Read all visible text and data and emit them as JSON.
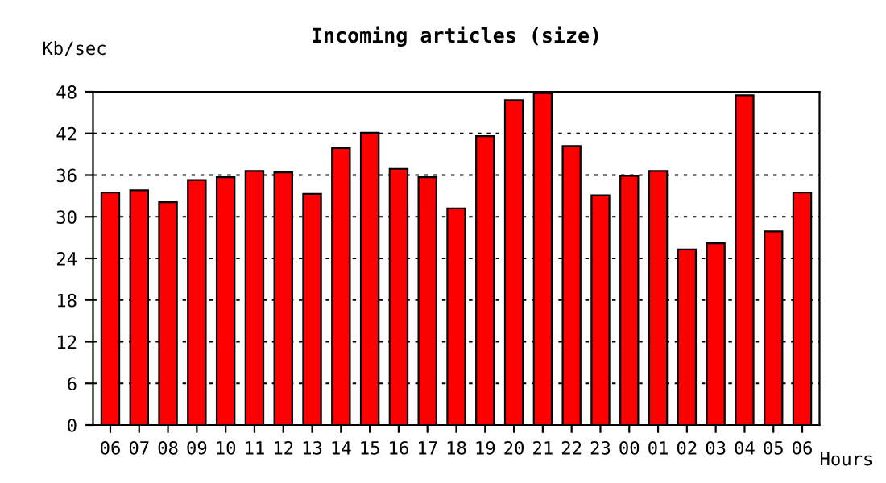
{
  "chart_data": {
    "type": "bar",
    "title": "Incoming articles (size)",
    "ylabel": "Kb/sec",
    "xlabel": "Hours",
    "categories": [
      "06",
      "07",
      "08",
      "09",
      "10",
      "11",
      "12",
      "13",
      "14",
      "15",
      "16",
      "17",
      "18",
      "19",
      "20",
      "21",
      "22",
      "23",
      "00",
      "01",
      "02",
      "03",
      "04",
      "05",
      "06"
    ],
    "values": [
      33.5,
      33.8,
      32.1,
      35.3,
      35.7,
      36.6,
      36.4,
      33.3,
      39.9,
      42.1,
      36.9,
      35.7,
      31.2,
      41.6,
      46.8,
      47.8,
      40.2,
      33.1,
      35.9,
      36.6,
      25.3,
      26.2,
      47.5,
      27.9,
      33.5
    ],
    "color": "#ff0000",
    "ylim": [
      0,
      48
    ],
    "yticks": [
      0,
      6,
      12,
      18,
      24,
      30,
      36,
      42,
      48
    ],
    "grid": "y"
  }
}
